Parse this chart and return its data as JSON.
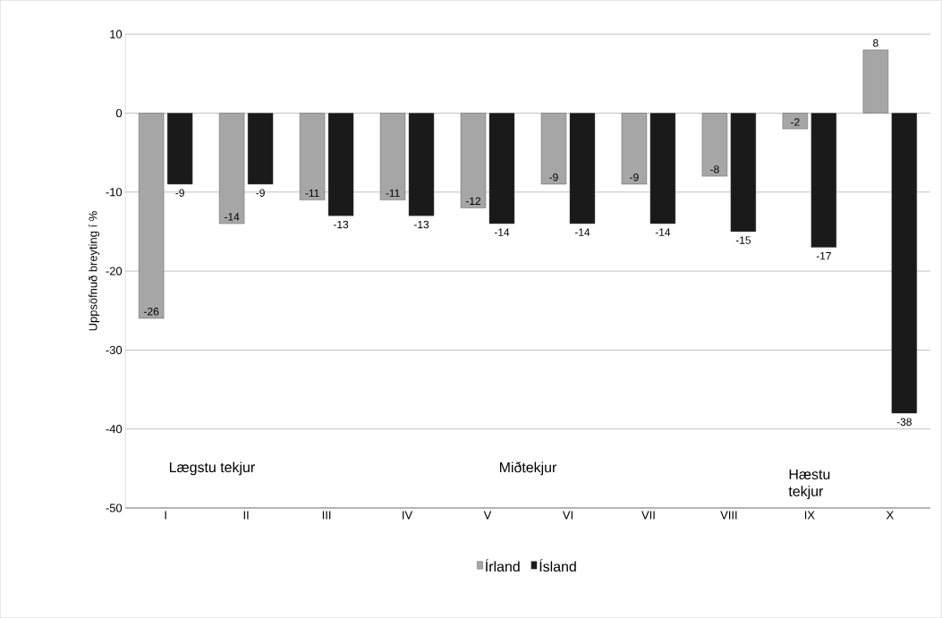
{
  "chart_data": {
    "type": "bar",
    "ylabel": "Uppsöfnuð breyting í %",
    "categories": [
      "I",
      "II",
      "III",
      "IV",
      "V",
      "VI",
      "VII",
      "VIII",
      "IX",
      "X"
    ],
    "series": [
      {
        "name": "Írland",
        "color": "#a6a6a6",
        "values": [
          -26,
          -14,
          -11,
          -11,
          -12,
          -9,
          -9,
          -8,
          -2,
          8
        ]
      },
      {
        "name": "Ísland",
        "color": "#1a1a1a",
        "values": [
          -9,
          -9,
          -13,
          -13,
          -14,
          -14,
          -14,
          -15,
          -17,
          -38
        ]
      }
    ],
    "ylim": [
      -50,
      10
    ],
    "yticks": [
      -50,
      -40,
      -30,
      -20,
      -10,
      0,
      10
    ],
    "grid": "y",
    "legend": "bottom",
    "data_labels": true,
    "annotations": [
      "Lægstu tekjur",
      "Miðtekjur",
      "Hæstu tekjur"
    ]
  }
}
